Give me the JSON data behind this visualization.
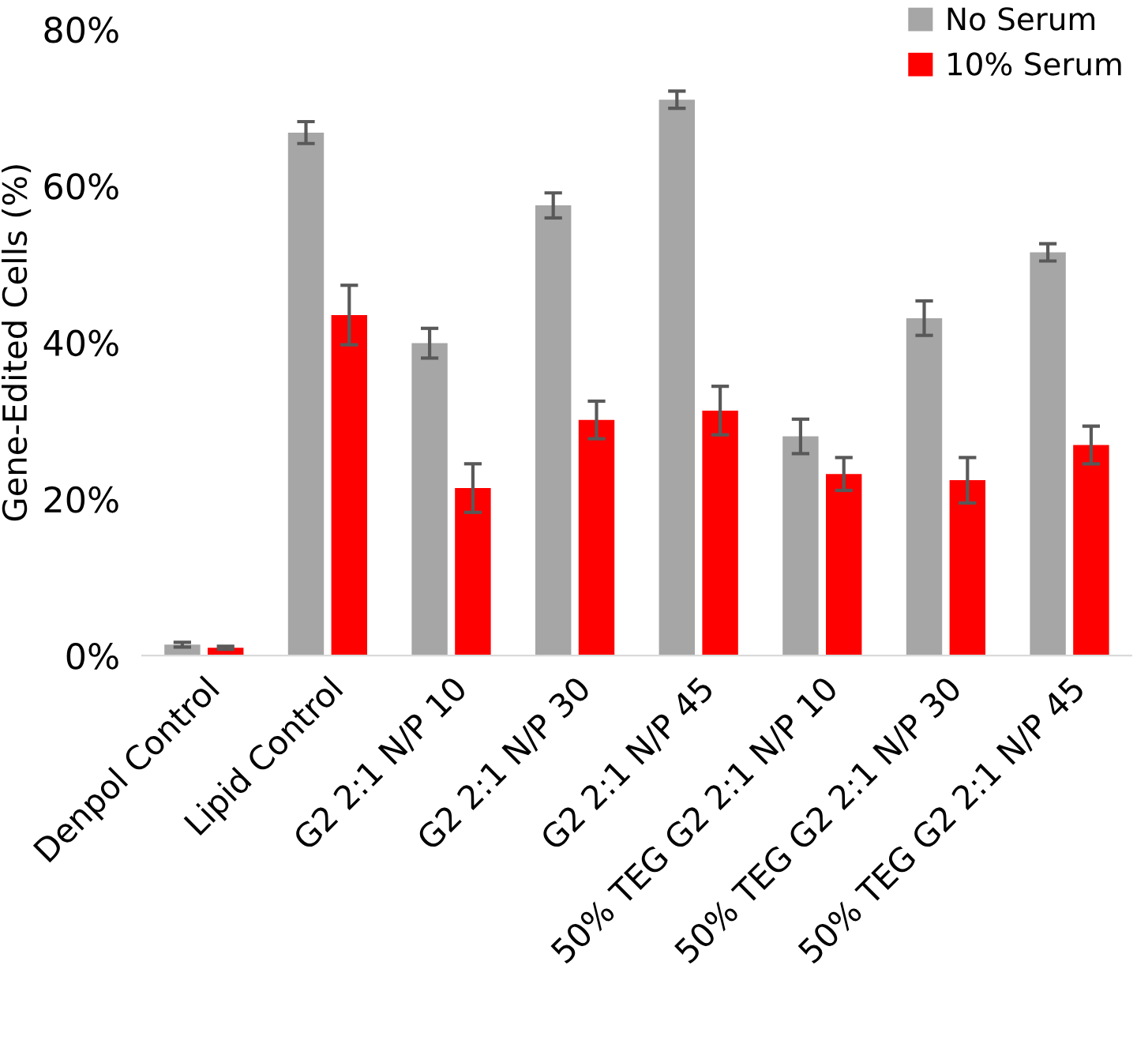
{
  "chart_data": {
    "type": "bar",
    "ylabel": "Gene-Edited Cells (%)",
    "categories": [
      "Denpol Control",
      "Lipid Control",
      "G2 2:1 N/P 10",
      "G2 2:1 N/P 30",
      "G2 2:1 N/P 45",
      "50% TEG G2 2:1 N/P 10",
      "50% TEG G2 2:1 N/P 30",
      "50% TEG G2 2:1 N/P 45"
    ],
    "series": [
      {
        "name": "No Serum",
        "color": "#a6a6a6",
        "values": [
          1.4,
          66.8,
          39.9,
          57.5,
          71.0,
          28.0,
          43.1,
          51.5
        ],
        "errors": [
          0.3,
          1.4,
          1.9,
          1.6,
          1.1,
          2.2,
          2.2,
          1.1
        ]
      },
      {
        "name": "10% Serum",
        "color": "#ff0000",
        "values": [
          1.0,
          43.5,
          21.4,
          30.1,
          31.3,
          23.2,
          22.4,
          26.9
        ],
        "errors": [
          0.2,
          3.8,
          3.1,
          2.4,
          3.1,
          2.1,
          2.9,
          2.4
        ]
      }
    ],
    "ylim": [
      0,
      80
    ],
    "yticks": [
      {
        "value": 0,
        "label": "0%"
      },
      {
        "value": 20,
        "label": "20%"
      },
      {
        "value": 40,
        "label": "40%"
      },
      {
        "value": 60,
        "label": "60%"
      },
      {
        "value": 80,
        "label": "80%"
      }
    ],
    "grid": false,
    "legend": "top right"
  }
}
